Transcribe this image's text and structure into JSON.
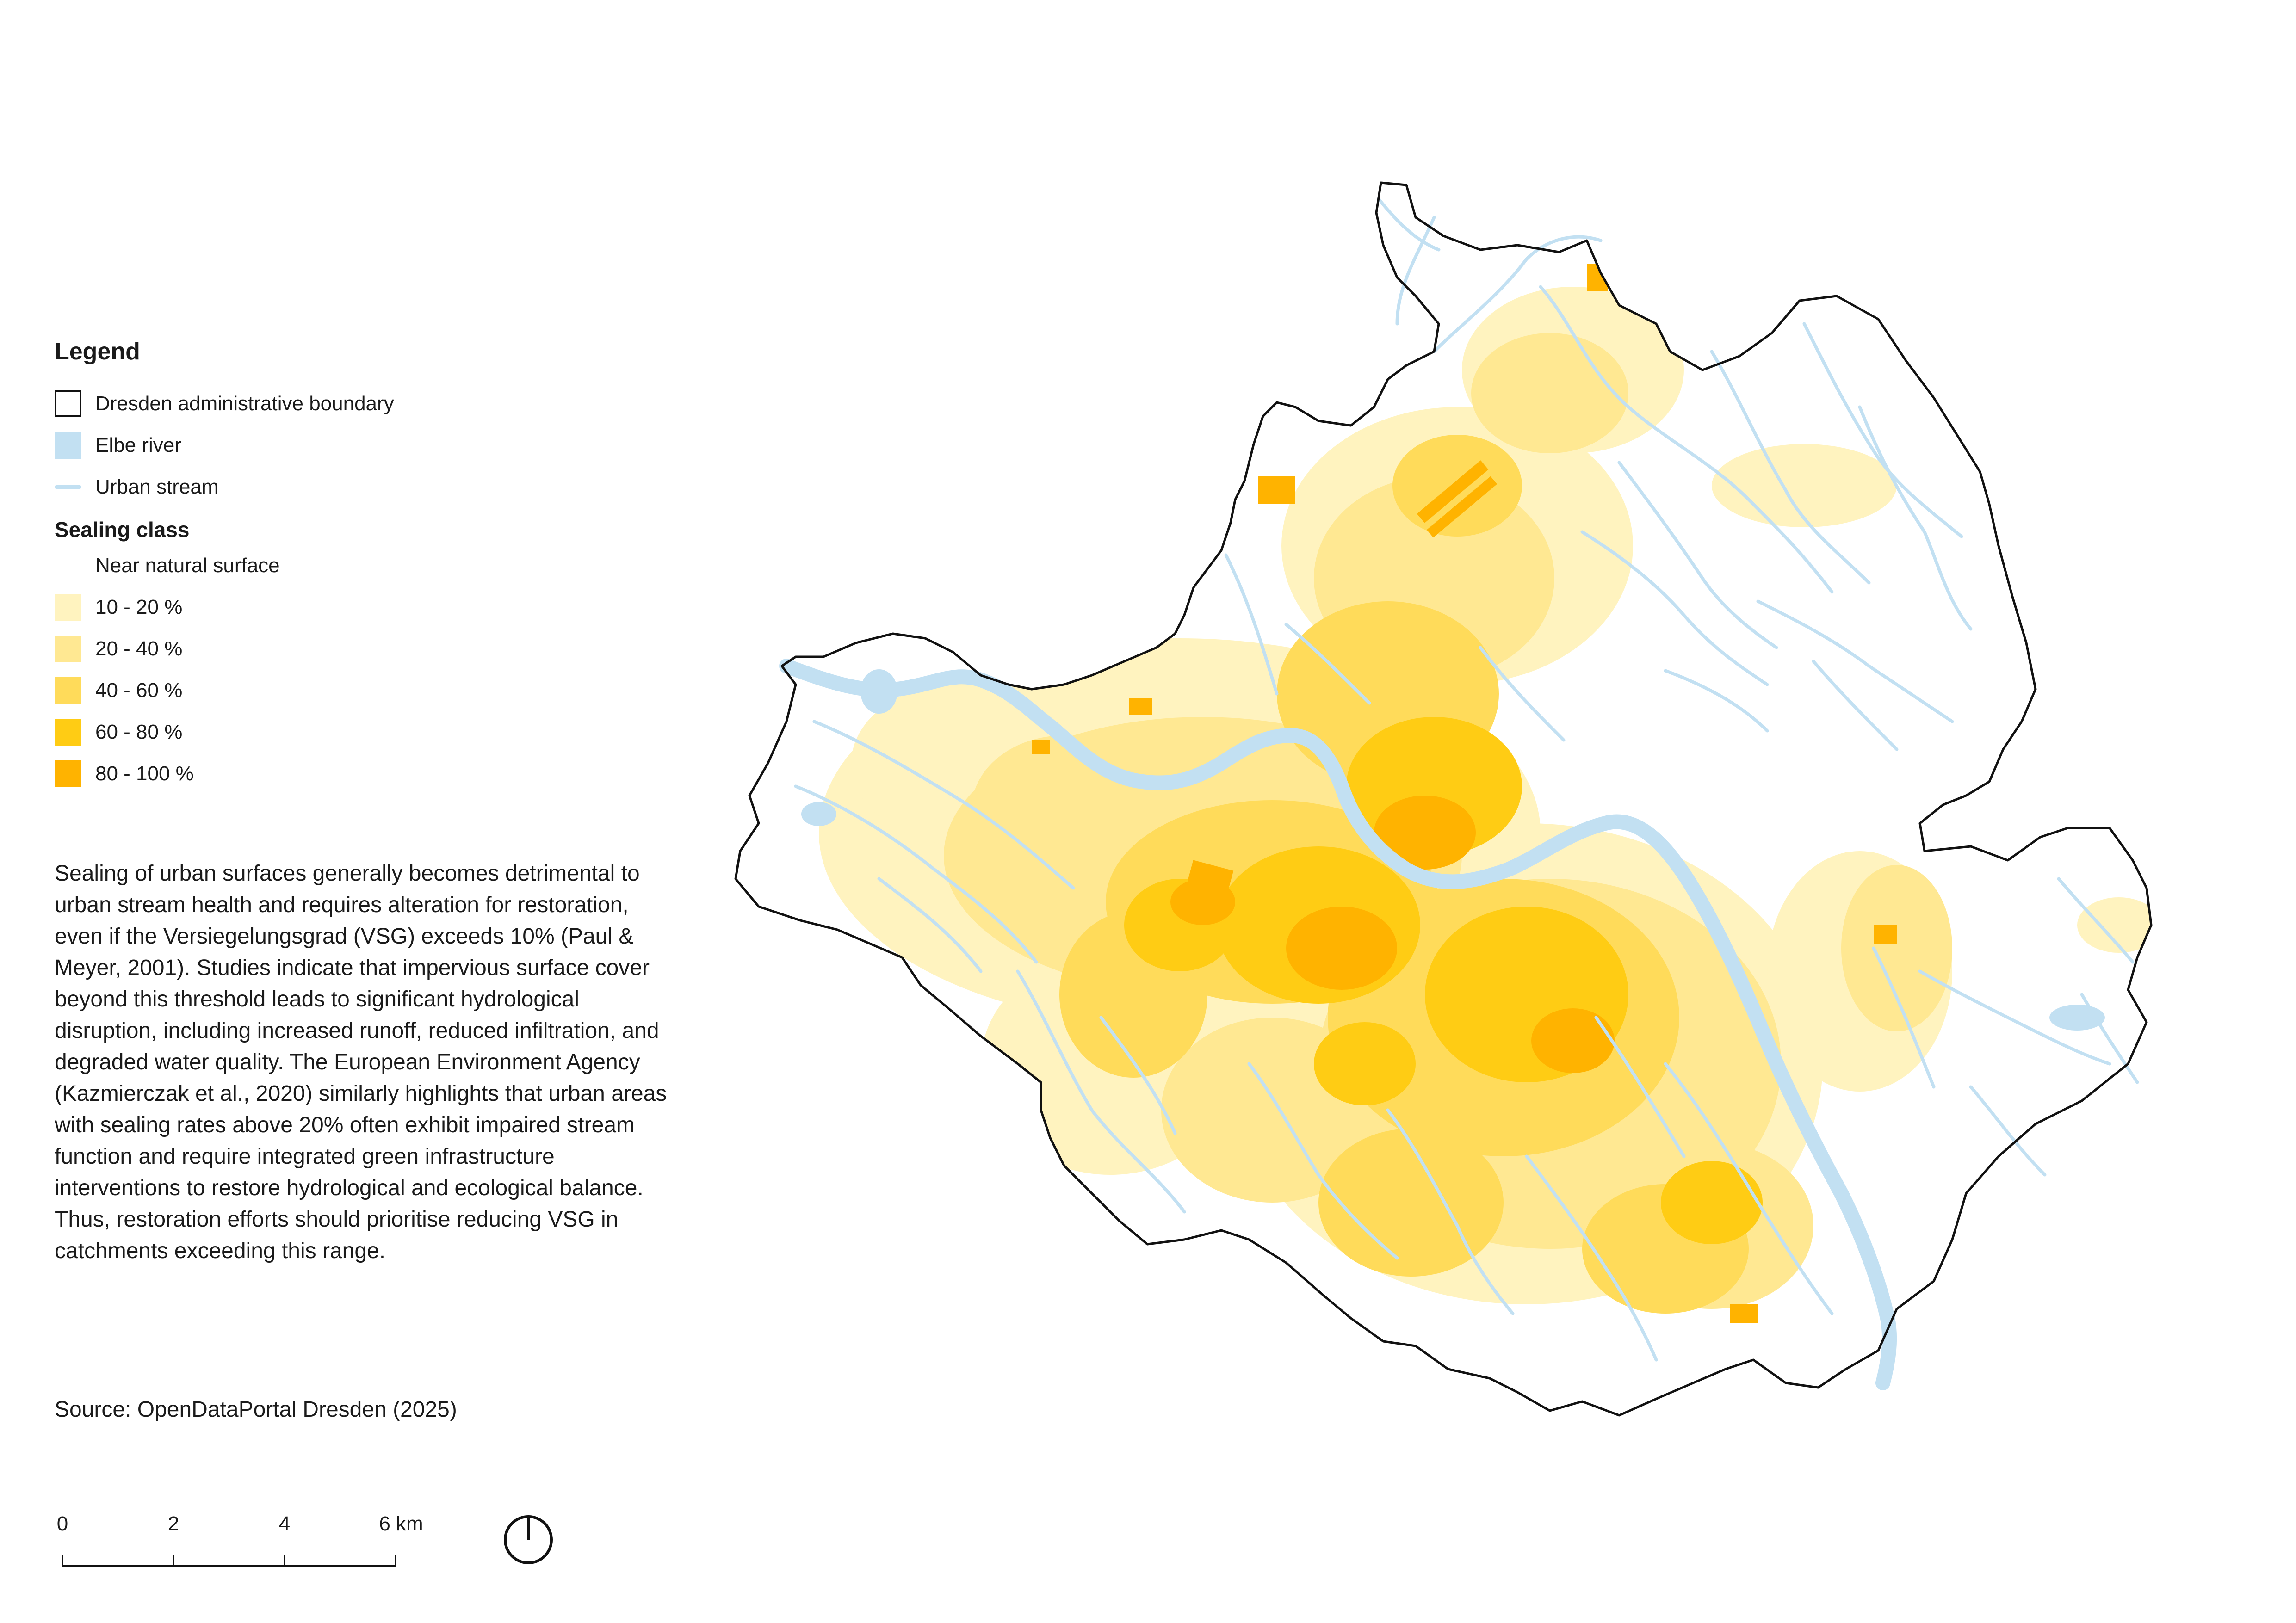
{
  "legend": {
    "title": "Legend",
    "items": [
      {
        "label": "Dresden administrative boundary"
      },
      {
        "label": "Elbe river",
        "color": "#c2e0f2"
      },
      {
        "label": "Urban stream",
        "color": "#c2e0f2"
      }
    ],
    "sealing_title": "Sealing class",
    "sealing_classes": [
      {
        "label": "Near natural surface",
        "color": "#ffffff"
      },
      {
        "label": "10 - 20 %",
        "color": "#fff3bf"
      },
      {
        "label": "20 - 40 %",
        "color": "#ffe892"
      },
      {
        "label": "40 - 60 %",
        "color": "#ffdb5a"
      },
      {
        "label": "60 - 80 %",
        "color": "#ffcc14"
      },
      {
        "label": "80 - 100 %",
        "color": "#ffb300"
      }
    ]
  },
  "description": "Sealing of urban surfaces generally becomes detrimental to urban stream health and requires alteration for restoration, even if the Versiegelungsgrad (VSG) exceeds 10% (Paul & Meyer, 2001). Studies indicate that impervious surface cover beyond this threshold leads to significant hydrological disruption, including increased runoff, reduced infiltration, and degraded water quality. The European Environment Agency (Kazmierczak et al., 2020) similarly highlights that urban areas with sealing rates above 20% often exhibit impaired stream function and require integrated green infrastructure interventions to restore hydrological and ecological balance. Thus, restoration efforts should prioritise reducing VSG in catchments exceeding this range.",
  "source": "Source: OpenDataPortal Dresden (2025)",
  "scale_bar": {
    "labels": [
      "0",
      "2",
      "4",
      "6 km"
    ]
  },
  "north_arrow": {
    "icon": "north-arrow-icon"
  }
}
